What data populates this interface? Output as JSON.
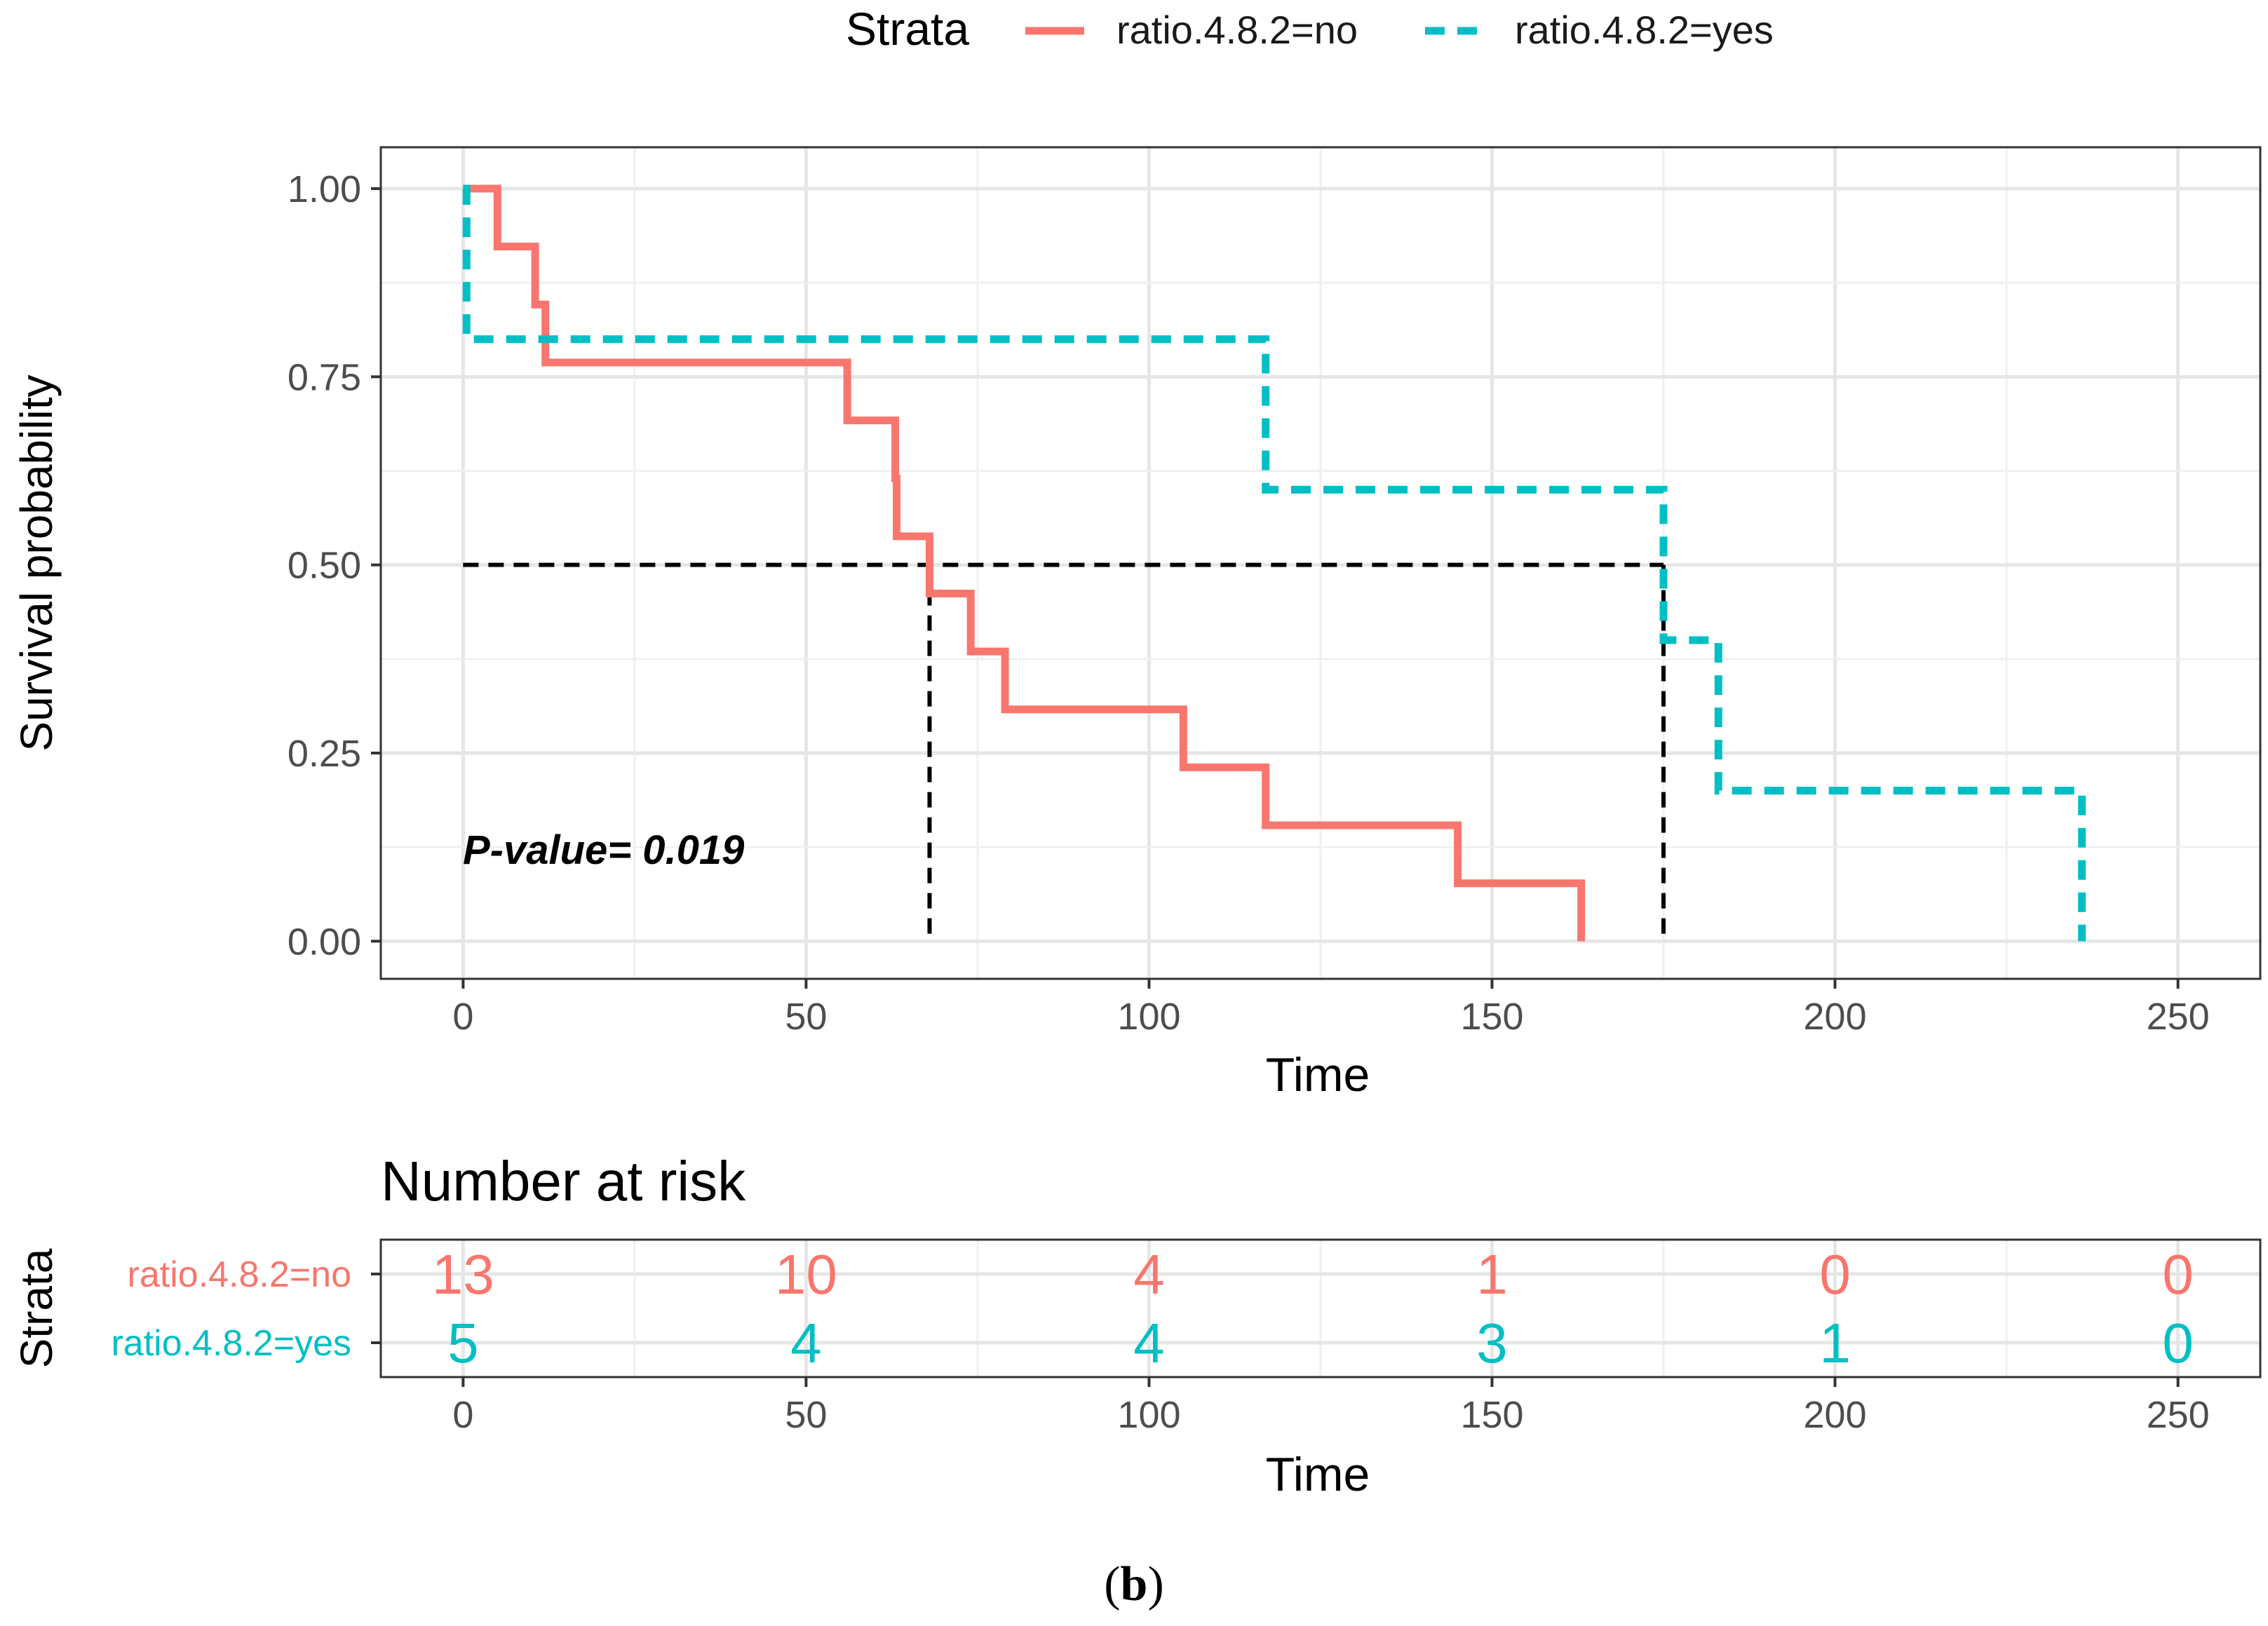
{
  "caption": {
    "open": "(",
    "letter": "b",
    "close": ")"
  },
  "legend": {
    "title": "Strata",
    "entries": [
      {
        "label": "ratio.4.8.2=no",
        "color": "#F8766D",
        "style": "solid"
      },
      {
        "label": "ratio.4.8.2=yes",
        "color": "#00BFC4",
        "style": "dashed"
      }
    ],
    "placement": "top"
  },
  "annotation": {
    "pvalue": "P-value= 0.019"
  },
  "chart_data": [
    {
      "type": "line",
      "subtype": "kaplan-meier-step",
      "xlabel": "Time",
      "ylabel": "Survival probability",
      "xlim": [
        -12,
        262
      ],
      "ylim": [
        -0.05,
        1.055
      ],
      "xticks": [
        0,
        50,
        100,
        150,
        200,
        250
      ],
      "yticks": [
        0,
        0.25,
        0.5,
        0.75,
        1.0
      ],
      "ytick_labels": [
        "0.00",
        "0.25",
        "0.50",
        "0.75",
        "1.00"
      ],
      "grid": true,
      "series": [
        {
          "name": "ratio.4.8.2=no",
          "color": "#F8766D",
          "style": "solid",
          "steps": [
            [
              0,
              1.0
            ],
            [
              5,
              0.923
            ],
            [
              10.5,
              0.846
            ],
            [
              12,
              0.769
            ],
            [
              56,
              0.692
            ],
            [
              63,
              0.615
            ],
            [
              63.2,
              0.538
            ],
            [
              68,
              0.462
            ],
            [
              74,
              0.385
            ],
            [
              79,
              0.308
            ],
            [
              105,
              0.231
            ],
            [
              117,
              0.154
            ],
            [
              145,
              0.077
            ],
            [
              163,
              0.0
            ]
          ],
          "end": 163
        },
        {
          "name": "ratio.4.8.2=yes",
          "color": "#00BFC4",
          "style": "dashed",
          "steps": [
            [
              0,
              1.0
            ],
            [
              0.5,
              0.8
            ],
            [
              117,
              0.6
            ],
            [
              175,
              0.4
            ],
            [
              183,
              0.2
            ],
            [
              236,
              0.0
            ]
          ],
          "end": 236
        }
      ],
      "median_lines": {
        "y": 0.5,
        "x": [
          68,
          175
        ],
        "color": "#000000",
        "style": "dashed"
      }
    },
    {
      "type": "table",
      "title": "Number at risk",
      "xlabel": "Time",
      "ylabel": "Strata",
      "xlim": [
        -12,
        262
      ],
      "xticks": [
        0,
        50,
        100,
        150,
        200,
        250
      ],
      "rows": [
        {
          "name": "ratio.4.8.2=no",
          "color": "#F8766D",
          "values": [
            13,
            10,
            4,
            1,
            0,
            0
          ]
        },
        {
          "name": "ratio.4.8.2=yes",
          "color": "#00BFC4",
          "values": [
            5,
            4,
            4,
            3,
            1,
            0
          ]
        }
      ]
    }
  ]
}
